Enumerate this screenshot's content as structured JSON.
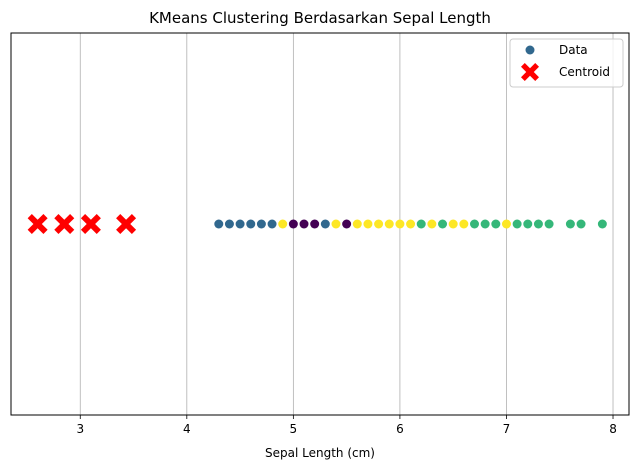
{
  "chart_data": {
    "type": "scatter",
    "title": "KMeans Clustering Berdasarkan Sepal Length",
    "xlabel": "Sepal Length (cm)",
    "ylabel": "",
    "xlim": [
      2.35,
      8.15
    ],
    "ylim": [
      -1,
      1
    ],
    "xticks": [
      "3",
      "4",
      "5",
      "6",
      "7",
      "8"
    ],
    "grid": "x-only",
    "legend": {
      "position": "top-right",
      "entries": [
        {
          "label": "Data",
          "color": "#31688e",
          "marker": "circle"
        },
        {
          "label": "Centroid",
          "color": "#ff0000",
          "marker": "X"
        }
      ]
    },
    "cluster_colors": [
      "#440154",
      "#31688e",
      "#35b779",
      "#fde725"
    ],
    "points": [
      {
        "x": 4.3,
        "y": 0,
        "cluster": 1
      },
      {
        "x": 4.4,
        "y": 0,
        "cluster": 1
      },
      {
        "x": 4.5,
        "y": 0,
        "cluster": 1
      },
      {
        "x": 4.6,
        "y": 0,
        "cluster": 1
      },
      {
        "x": 4.7,
        "y": 0,
        "cluster": 1
      },
      {
        "x": 4.8,
        "y": 0,
        "cluster": 1
      },
      {
        "x": 4.9,
        "y": 0,
        "cluster": 3
      },
      {
        "x": 5.0,
        "y": 0,
        "cluster": 0
      },
      {
        "x": 5.1,
        "y": 0,
        "cluster": 0
      },
      {
        "x": 5.2,
        "y": 0,
        "cluster": 0
      },
      {
        "x": 5.3,
        "y": 0,
        "cluster": 1
      },
      {
        "x": 5.4,
        "y": 0,
        "cluster": 3
      },
      {
        "x": 5.5,
        "y": 0,
        "cluster": 0
      },
      {
        "x": 5.6,
        "y": 0,
        "cluster": 3
      },
      {
        "x": 5.7,
        "y": 0,
        "cluster": 3
      },
      {
        "x": 5.8,
        "y": 0,
        "cluster": 3
      },
      {
        "x": 5.9,
        "y": 0,
        "cluster": 3
      },
      {
        "x": 6.0,
        "y": 0,
        "cluster": 3
      },
      {
        "x": 6.1,
        "y": 0,
        "cluster": 3
      },
      {
        "x": 6.2,
        "y": 0,
        "cluster": 2
      },
      {
        "x": 6.3,
        "y": 0,
        "cluster": 3
      },
      {
        "x": 6.4,
        "y": 0,
        "cluster": 2
      },
      {
        "x": 6.5,
        "y": 0,
        "cluster": 3
      },
      {
        "x": 6.6,
        "y": 0,
        "cluster": 3
      },
      {
        "x": 6.7,
        "y": 0,
        "cluster": 2
      },
      {
        "x": 6.8,
        "y": 0,
        "cluster": 2
      },
      {
        "x": 6.9,
        "y": 0,
        "cluster": 2
      },
      {
        "x": 7.0,
        "y": 0,
        "cluster": 3
      },
      {
        "x": 7.1,
        "y": 0,
        "cluster": 2
      },
      {
        "x": 7.2,
        "y": 0,
        "cluster": 2
      },
      {
        "x": 7.3,
        "y": 0,
        "cluster": 2
      },
      {
        "x": 7.4,
        "y": 0,
        "cluster": 2
      },
      {
        "x": 7.6,
        "y": 0,
        "cluster": 2
      },
      {
        "x": 7.7,
        "y": 0,
        "cluster": 2
      },
      {
        "x": 7.9,
        "y": 0,
        "cluster": 2
      }
    ],
    "centroids": [
      {
        "x": 2.6,
        "y": 0
      },
      {
        "x": 2.85,
        "y": 0
      },
      {
        "x": 3.1,
        "y": 0
      },
      {
        "x": 3.43,
        "y": 0
      }
    ]
  }
}
